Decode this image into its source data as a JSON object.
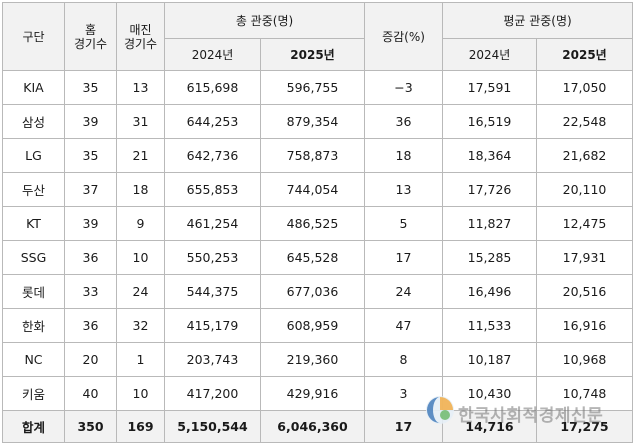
{
  "headers": {
    "division": "구단",
    "home_games": "홈\n경기수",
    "sellout_games": "매진\n경기수",
    "total_attendance": "총 관중(명)",
    "change": "증감(%)",
    "avg_attendance": "평균 관중(명)",
    "year_2024": "2024년",
    "year_2025": "2025년"
  },
  "rows": [
    {
      "team": "KIA",
      "home": "35",
      "sellout": "13",
      "total_2024": "615,698",
      "total_2025": "596,755",
      "change": "−3",
      "avg_2024": "17,591",
      "avg_2025": "17,050"
    },
    {
      "team": "삼성",
      "home": "39",
      "sellout": "31",
      "total_2024": "644,253",
      "total_2025": "879,354",
      "change": "36",
      "avg_2024": "16,519",
      "avg_2025": "22,548"
    },
    {
      "team": "LG",
      "home": "35",
      "sellout": "21",
      "total_2024": "642,736",
      "total_2025": "758,873",
      "change": "18",
      "avg_2024": "18,364",
      "avg_2025": "21,682"
    },
    {
      "team": "두산",
      "home": "37",
      "sellout": "18",
      "total_2024": "655,853",
      "total_2025": "744,054",
      "change": "13",
      "avg_2024": "17,726",
      "avg_2025": "20,110"
    },
    {
      "team": "KT",
      "home": "39",
      "sellout": "9",
      "total_2024": "461,254",
      "total_2025": "486,525",
      "change": "5",
      "avg_2024": "11,827",
      "avg_2025": "12,475"
    },
    {
      "team": "SSG",
      "home": "36",
      "sellout": "10",
      "total_2024": "550,253",
      "total_2025": "645,528",
      "change": "17",
      "avg_2024": "15,285",
      "avg_2025": "17,931"
    },
    {
      "team": "롯데",
      "home": "33",
      "sellout": "24",
      "total_2024": "544,375",
      "total_2025": "677,036",
      "change": "24",
      "avg_2024": "16,496",
      "avg_2025": "20,516"
    },
    {
      "team": "한화",
      "home": "36",
      "sellout": "32",
      "total_2024": "415,179",
      "total_2025": "608,959",
      "change": "47",
      "avg_2024": "11,533",
      "avg_2025": "16,916"
    },
    {
      "team": "NC",
      "home": "20",
      "sellout": "1",
      "total_2024": "203,743",
      "total_2025": "219,360",
      "change": "8",
      "avg_2024": "10,187",
      "avg_2025": "10,968"
    },
    {
      "team": "키움",
      "home": "40",
      "sellout": "10",
      "total_2024": "417,200",
      "total_2025": "429,916",
      "change": "3",
      "avg_2024": "10,430",
      "avg_2025": "10,748"
    }
  ],
  "total": {
    "team": "합계",
    "home": "350",
    "sellout": "169",
    "total_2024": "5,150,544",
    "total_2025": "6,046,360",
    "change": "17",
    "avg_2024": "14,716",
    "avg_2025": "17,275"
  },
  "watermark": {
    "text": "한국사회적경제신문"
  }
}
